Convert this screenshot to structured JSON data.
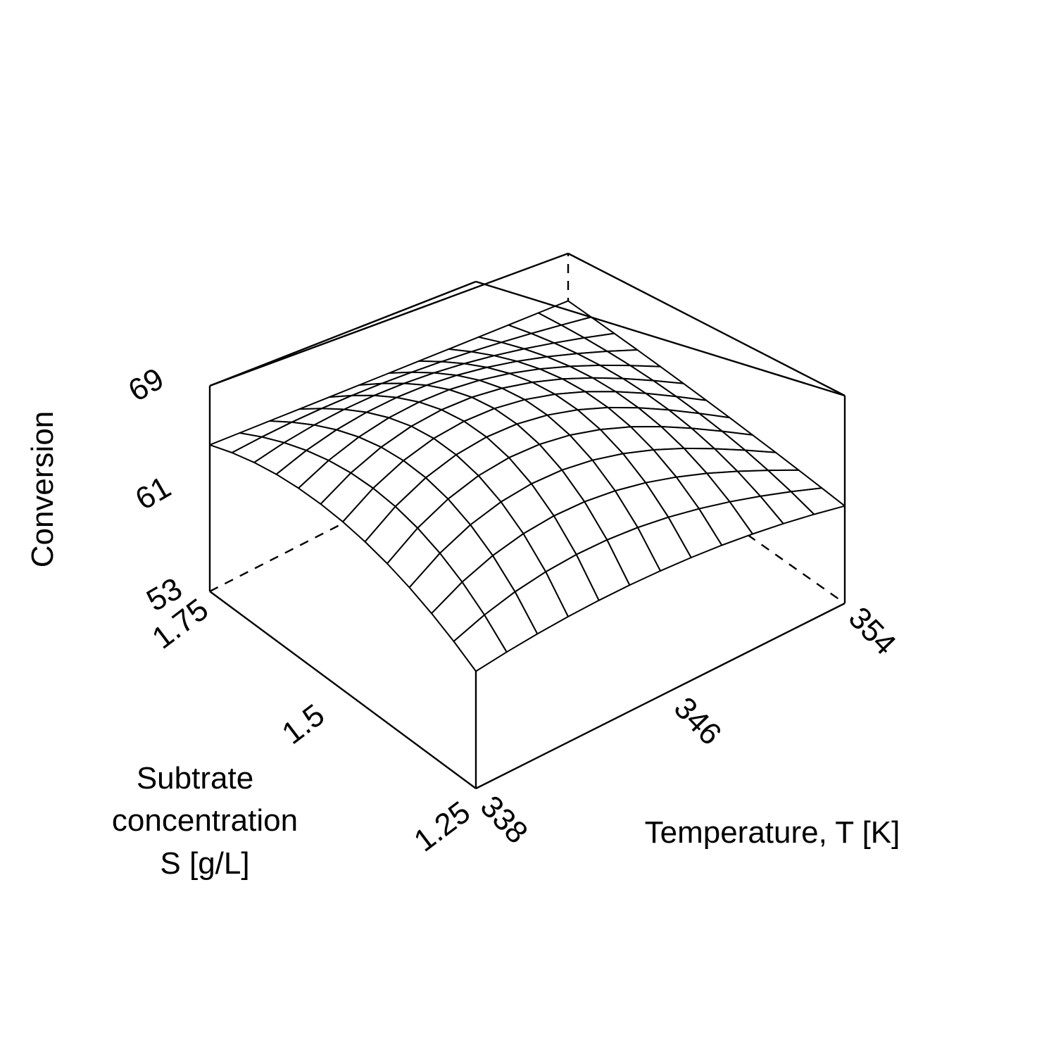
{
  "chart_data": {
    "type": "surface",
    "x_axis": {
      "label": "Temperature, T [K]",
      "range": [
        338,
        354
      ],
      "ticks": [
        338,
        346,
        354
      ],
      "tick_labels": [
        "338",
        "346",
        "354"
      ]
    },
    "y_axis": {
      "label_lines": [
        "Subtrate",
        "concentration",
        "S [g/L]"
      ],
      "range": [
        1.25,
        1.75
      ],
      "ticks": [
        1.25,
        1.5,
        1.75
      ],
      "tick_labels": [
        "1.25",
        "1.5",
        "1.75"
      ]
    },
    "z_axis": {
      "label": "Conversion",
      "range": [
        53,
        69
      ],
      "ticks": [
        53,
        61,
        69
      ],
      "tick_labels": [
        "53",
        "61",
        "69"
      ]
    },
    "surface": {
      "grid_size": 13,
      "corner_values": [
        {
          "T": 338,
          "S": 1.25,
          "conversion": 56.7
        },
        {
          "T": 354,
          "S": 1.25,
          "conversion": 60.5
        },
        {
          "T": 338,
          "S": 1.75,
          "conversion": 64.4
        },
        {
          "T": 354,
          "S": 1.75,
          "conversion": 64.1
        }
      ],
      "center_value": {
        "T": 346,
        "S": 1.5,
        "conversion": 64.8
      }
    },
    "grid": false,
    "legend": "none"
  }
}
